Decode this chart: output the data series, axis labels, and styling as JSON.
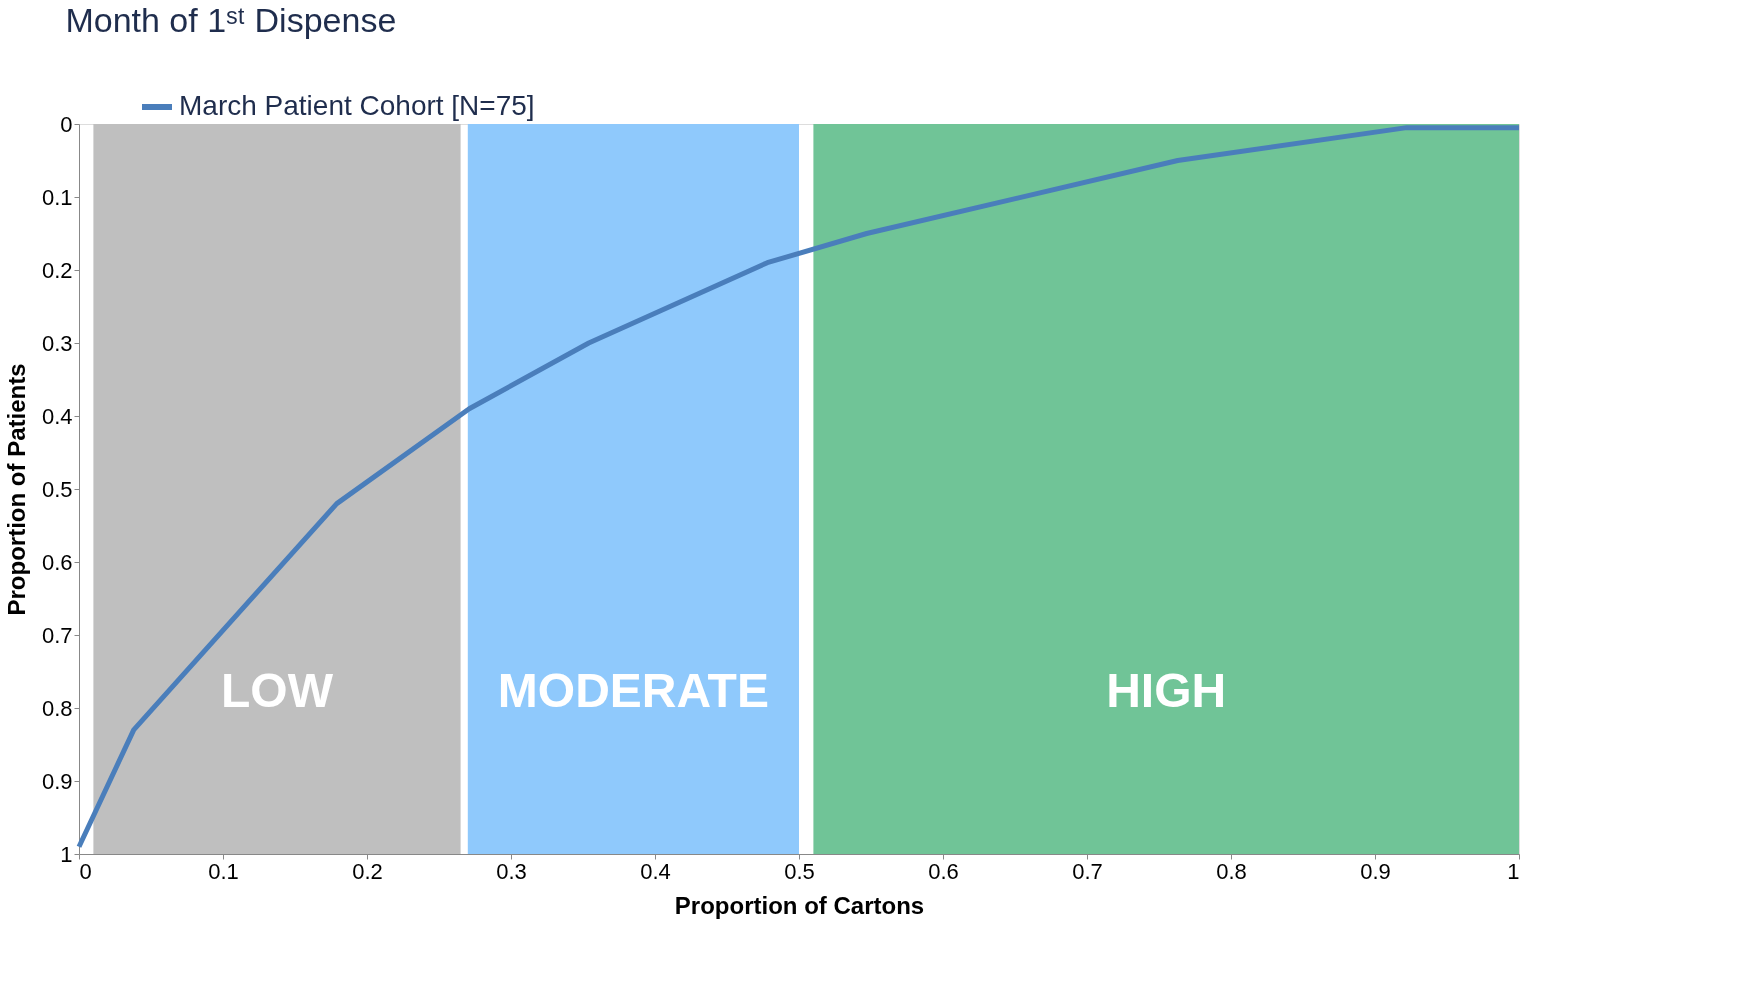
{
  "chart_data": {
    "type": "line",
    "title": "Month of 1ˢᵗ Dispense",
    "xlabel": "Proportion of Cartons",
    "ylabel": "Proportion of Patients",
    "x": [
      0,
      0.038,
      0.179,
      0.271,
      0.354,
      0.478,
      0.547,
      0.763,
      0.922,
      1
    ],
    "series": [
      {
        "name": "March Patient Cohort [N=75]",
        "color": "#4a7ebb",
        "values": [
          0.99,
          0.83,
          0.52,
          0.39,
          0.3,
          0.19,
          0.15,
          0.05,
          0.005,
          0.005
        ]
      }
    ],
    "xlim": [
      0,
      1
    ],
    "ylim": [
      1,
      0
    ],
    "xticks": [
      0,
      0.1,
      0.2,
      0.3,
      0.4,
      0.5,
      0.6,
      0.7,
      0.8,
      0.9,
      1
    ],
    "yticks": [
      0,
      0.1,
      0.2,
      0.3,
      0.4,
      0.5,
      0.6,
      0.7,
      0.8,
      0.9,
      1
    ],
    "bands": [
      {
        "axis": "x",
        "from": 0.01,
        "to": 0.265,
        "label": "LOW",
        "color": "#bfbfbf"
      },
      {
        "axis": "x",
        "from": 0.27,
        "to": 0.5,
        "label": "MODERATE",
        "color": "#8fc9fc"
      },
      {
        "axis": "x",
        "from": 0.51,
        "to": 1,
        "label": "HIGH",
        "color": "#70c497"
      }
    ],
    "grid": false,
    "legend": "top left",
    "line_style": "solid",
    "marker": "none"
  }
}
